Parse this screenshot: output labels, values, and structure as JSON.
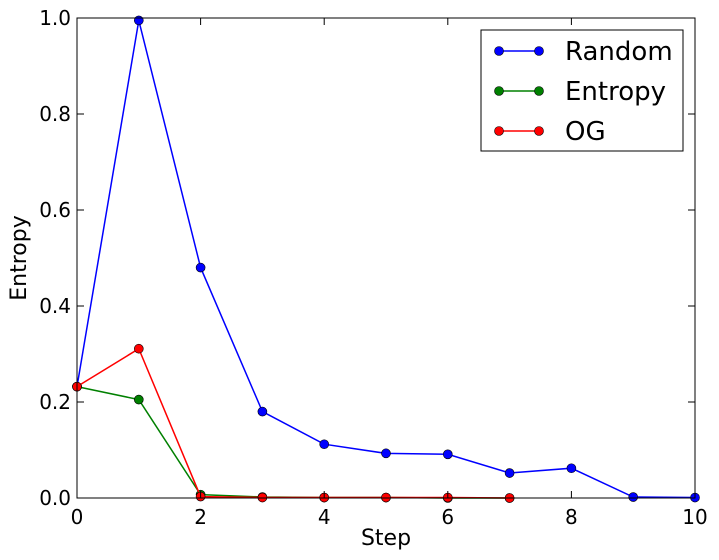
{
  "chart_data": {
    "type": "line",
    "xlabel": "Step",
    "ylabel": "Entropy",
    "xlim": [
      0,
      10
    ],
    "ylim": [
      0,
      1.0
    ],
    "xticks": [
      0,
      2,
      4,
      6,
      8,
      10
    ],
    "yticks": [
      0.0,
      0.2,
      0.4,
      0.6,
      0.8,
      1.0
    ],
    "xtick_labels": [
      "0",
      "2",
      "4",
      "6",
      "8",
      "10"
    ],
    "ytick_labels": [
      "0.0",
      "0.2",
      "0.4",
      "0.6",
      "0.8",
      "1.0"
    ],
    "grid": false,
    "legend_position": "top-right",
    "series": [
      {
        "name": "Random",
        "color": "#0000ff",
        "x": [
          0,
          1,
          2,
          3,
          4,
          5,
          6,
          7,
          8,
          9,
          10
        ],
        "y": [
          0.232,
          0.995,
          0.48,
          0.18,
          0.112,
          0.093,
          0.091,
          0.052,
          0.062,
          0.002,
          0.001
        ]
      },
      {
        "name": "Entropy",
        "color": "#008000",
        "x": [
          0,
          1,
          2,
          3,
          4,
          5,
          6,
          7
        ],
        "y": [
          0.232,
          0.205,
          0.007,
          0.002,
          0.001,
          0.001,
          0.0,
          0.0
        ]
      },
      {
        "name": "OG",
        "color": "#ff0000",
        "x": [
          0,
          1,
          2,
          3,
          4,
          5,
          6,
          7
        ],
        "y": [
          0.232,
          0.311,
          0.003,
          0.001,
          0.001,
          0.001,
          0.001,
          0.0
        ]
      }
    ]
  }
}
